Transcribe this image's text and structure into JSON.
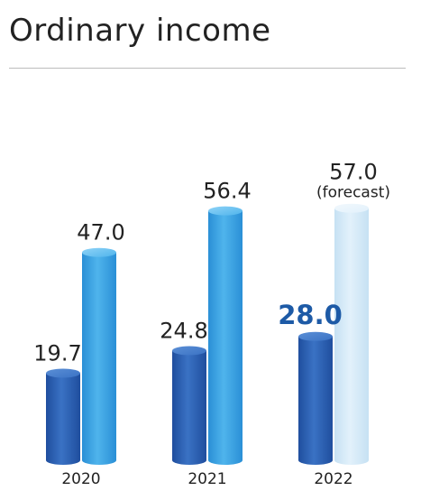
{
  "chart_data": {
    "type": "bar",
    "title": "Ordinary income",
    "categories": [
      "2020",
      "2021",
      "2022"
    ],
    "series": [
      {
        "values": [
          19.7,
          24.8,
          28.0
        ]
      },
      {
        "values": [
          47.0,
          56.4,
          57.0
        ]
      }
    ],
    "value_labels": [
      [
        "19.7",
        "24.8",
        "28.0"
      ],
      [
        "47.0",
        "56.4",
        "57.0"
      ]
    ],
    "notes": [
      "",
      "",
      "(forecast)"
    ],
    "emphasized_label": {
      "series": 0,
      "category": 2,
      "color": "#1d5aa6"
    },
    "forecast": {
      "series": 1,
      "category": 2
    },
    "colors": {
      "series0_dark": "#1f4e9e",
      "series0_mid": "#3a72c4",
      "series0_light": "#5b8fd6",
      "series1_dark": "#2a8fd6",
      "series1_mid": "#4fb4ec",
      "series1_light": "#8fd3f7",
      "forecast_dark": "#c6e1f3",
      "forecast_mid": "#e2f1fb",
      "forecast_light": "#f1f8fd"
    }
  }
}
